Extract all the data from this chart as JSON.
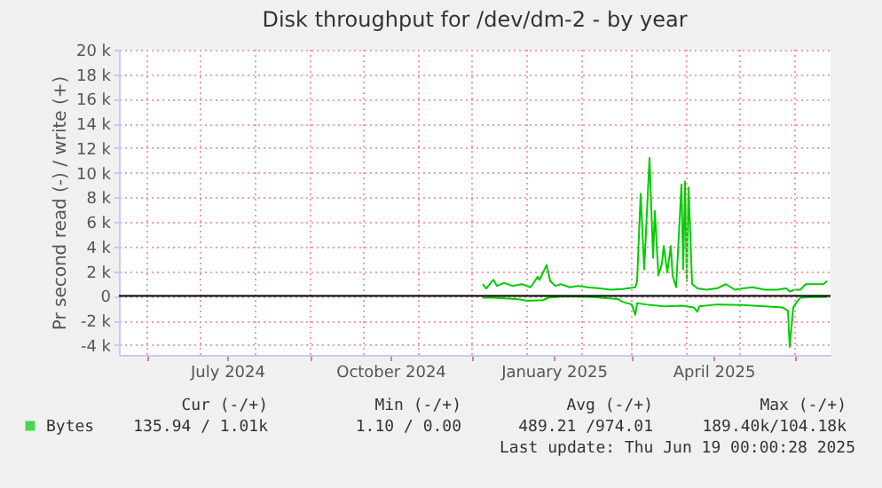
{
  "chart_data": {
    "type": "line",
    "title": "Disk throughput for /dev/dm-2 - by year",
    "ylabel": "Pr second read (-) / write (+)",
    "xlim": [
      "2024-05-16",
      "2025-06-21"
    ],
    "xticks": [
      {
        "value": "2024-06-01",
        "label": null
      },
      {
        "value": "2024-07-01",
        "label": null
      },
      {
        "value": "2024-08-01",
        "label": null
      },
      {
        "value": "2024-09-01",
        "label": null
      },
      {
        "value": "2024-10-01",
        "label": null
      },
      {
        "value": "2024-11-01",
        "label": null
      },
      {
        "value": "2024-12-01",
        "label": null
      },
      {
        "value": "2025-01-01",
        "label": null
      },
      {
        "value": "2025-02-01",
        "label": null
      },
      {
        "value": "2025-03-01",
        "label": null
      },
      {
        "value": "2025-04-01",
        "label": null
      },
      {
        "value": "2025-05-01",
        "label": null
      },
      {
        "value": "2025-06-01",
        "label": null
      },
      {
        "value": "2024-07-16",
        "label": "July 2024"
      },
      {
        "value": "2024-10-16",
        "label": "October 2024"
      },
      {
        "value": "2025-01-16",
        "label": "January 2025"
      },
      {
        "value": "2025-04-16",
        "label": "April 2025"
      }
    ],
    "ylim": [
      -4800,
      20000
    ],
    "yticks": [
      {
        "value": -4000,
        "label": "-4 k"
      },
      {
        "value": -2000,
        "label": "-2 k"
      },
      0,
      {
        "value": 2000,
        "label": "2 k"
      },
      {
        "value": 4000,
        "label": "4 k"
      },
      {
        "value": 6000,
        "label": "6 k"
      },
      {
        "value": 8000,
        "label": "8 k"
      },
      {
        "value": 10000,
        "label": "10 k"
      },
      {
        "value": 12000,
        "label": "12 k"
      },
      {
        "value": 14000,
        "label": "14 k"
      },
      {
        "value": 16000,
        "label": "16 k"
      },
      {
        "value": 18000,
        "label": "18 k"
      },
      {
        "value": 20000,
        "label": "20 k"
      }
    ],
    "grid": true,
    "legend": "bottom left",
    "marker": "none",
    "line_style": "solid",
    "ref_lines": [
      {
        "axis": "y",
        "value": 0,
        "color": "#000000"
      }
    ],
    "series": [
      {
        "name": "Bytes",
        "color": "#00cc00",
        "x": [
          "2024-12-07",
          "2024-12-09",
          "2024-12-13",
          "2024-12-15",
          "2024-12-19",
          "2024-12-24",
          "2024-12-29",
          "2025-01-03",
          "2025-01-07",
          "2025-01-08",
          "2025-01-10",
          "2025-01-12",
          "2025-01-14",
          "2025-01-17",
          "2025-01-20",
          "2025-01-25",
          "2025-01-30",
          "2025-02-04",
          "2025-02-11",
          "2025-02-17",
          "2025-02-24",
          "2025-03-03",
          "2025-03-04",
          "2025-03-06",
          "2025-03-08",
          "2025-03-11",
          "2025-03-13",
          "2025-03-14",
          "2025-03-16",
          "2025-03-18",
          "2025-03-19",
          "2025-03-21",
          "2025-03-23",
          "2025-03-24",
          "2025-03-26",
          "2025-03-29",
          "2025-03-30",
          "2025-03-31",
          "2025-04-01",
          "2025-04-02",
          "2025-04-04",
          "2025-04-07",
          "2025-04-12",
          "2025-04-18",
          "2025-04-23",
          "2025-04-28",
          "2025-05-03",
          "2025-05-08",
          "2025-05-15",
          "2025-05-22",
          "2025-05-27",
          "2025-05-29",
          "2025-06-01",
          "2025-06-04",
          "2025-06-07",
          "2025-06-12",
          "2025-06-17",
          "2025-06-19"
        ],
        "values": [
          950,
          600,
          1300,
          800,
          1050,
          800,
          950,
          700,
          1550,
          1300,
          1900,
          2500,
          1200,
          800,
          950,
          700,
          800,
          700,
          600,
          500,
          550,
          700,
          1200,
          8300,
          2150,
          11200,
          3100,
          6900,
          1650,
          2600,
          4050,
          1900,
          4050,
          1650,
          700,
          9050,
          2150,
          9300,
          1200,
          8800,
          950,
          600,
          500,
          600,
          950,
          500,
          600,
          700,
          500,
          500,
          600,
          350,
          500,
          500,
          950,
          950,
          950,
          1200
        ]
      },
      {
        "color": "#00cc00",
        "x": [
          "2024-12-07",
          "2024-12-13",
          "2024-12-26",
          "2025-01-01",
          "2025-01-10",
          "2025-01-13",
          "2025-01-22",
          "2025-02-07",
          "2025-02-21",
          "2025-02-24",
          "2025-03-01",
          "2025-03-03",
          "2025-03-04",
          "2025-03-09",
          "2025-03-19",
          "2025-03-29",
          "2025-04-05",
          "2025-04-07",
          "2025-04-08",
          "2025-04-18",
          "2025-05-02",
          "2025-05-15",
          "2025-05-25",
          "2025-05-28",
          "2025-05-29",
          "2025-05-31",
          "2025-06-02",
          "2025-06-04",
          "2025-06-11",
          "2025-06-19"
        ],
        "values": [
          -150,
          -150,
          -250,
          -400,
          -350,
          -150,
          -50,
          -100,
          -250,
          -500,
          -700,
          -1550,
          -600,
          -700,
          -850,
          -800,
          -950,
          -1300,
          -850,
          -700,
          -750,
          -850,
          -950,
          -1200,
          -4150,
          -950,
          -500,
          -150,
          -100,
          -100
        ]
      }
    ],
    "annotations": [
      "Cur (-/+)",
      "Min (-/+)",
      "Avg (-/+)",
      "Max (-/+)",
      "135.94 /  1.01k",
      "1.10 /  0.00",
      "489.21 /974.01",
      "189.40k/104.18k",
      "Last update: Thu Jun 19 00:00:28 2025"
    ]
  }
}
